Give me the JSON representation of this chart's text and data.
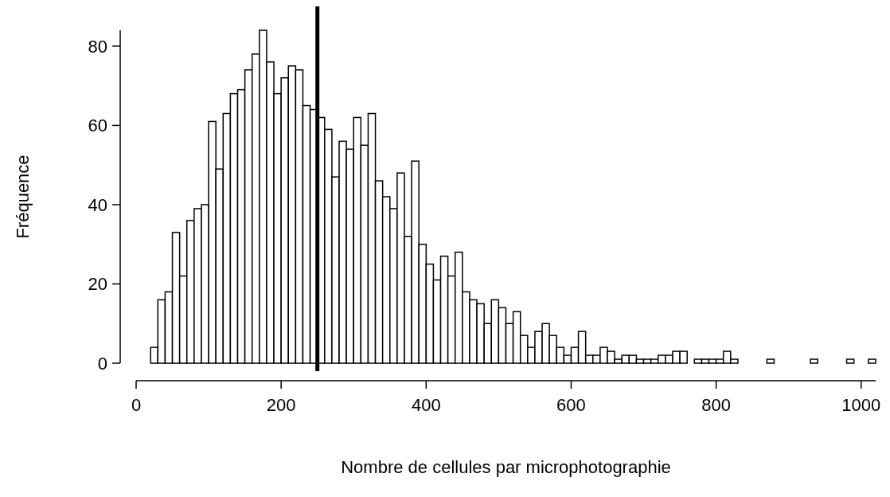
{
  "chart_data": {
    "type": "histogram",
    "xlabel": "Nombre de cellules par microphotographie",
    "ylabel": "Fréquence",
    "bins": [
      20,
      30,
      40,
      50,
      60,
      70,
      80,
      90,
      100,
      110,
      120,
      130,
      140,
      150,
      160,
      170,
      180,
      190,
      200,
      210,
      220,
      230,
      240,
      250,
      260,
      270,
      280,
      290,
      300,
      310,
      320,
      330,
      340,
      350,
      360,
      370,
      380,
      390,
      400,
      410,
      420,
      430,
      440,
      450,
      460,
      470,
      480,
      490,
      500,
      510,
      520,
      530,
      540,
      550,
      560,
      570,
      580,
      590,
      600,
      610,
      620,
      630,
      640,
      650,
      660,
      670,
      680,
      690,
      700,
      710,
      720,
      730,
      740,
      750,
      760,
      770,
      780,
      790,
      800,
      810,
      820,
      830,
      840,
      850,
      860,
      870,
      880,
      890,
      900,
      910,
      920,
      930,
      940,
      950,
      960,
      970,
      980,
      990,
      1000,
      1010,
      1020
    ],
    "values": [
      4,
      16,
      18,
      33,
      22,
      36,
      39,
      40,
      61,
      49,
      63,
      68,
      69,
      74,
      78,
      84,
      76,
      68,
      72,
      75,
      74,
      65,
      64,
      62,
      59,
      47,
      56,
      54,
      62,
      55,
      63,
      46,
      42,
      39,
      48,
      32,
      51,
      30,
      25,
      21,
      27,
      22,
      28,
      18,
      16,
      15,
      10,
      16,
      14,
      10,
      13,
      7,
      4,
      8,
      10,
      7,
      4,
      2,
      4,
      8,
      2,
      2,
      4,
      3,
      1,
      2,
      2,
      1,
      1,
      1,
      2,
      2,
      3,
      3,
      0,
      1,
      1,
      1,
      1,
      3,
      1,
      0,
      0,
      0,
      0,
      1,
      0,
      0,
      0,
      0,
      0,
      1,
      0,
      0,
      0,
      0,
      1,
      0,
      0,
      1
    ],
    "color": "#ffffff",
    "xlim": [
      0,
      1020
    ],
    "xticks": [
      0,
      200,
      400,
      600,
      800,
      1000
    ],
    "ylim": [
      0,
      84
    ],
    "yticks": [
      0,
      20,
      40,
      60,
      80
    ],
    "ref_lines": [
      {
        "axis": "x",
        "value": 250,
        "color": "#000000"
      }
    ],
    "grid": false
  }
}
